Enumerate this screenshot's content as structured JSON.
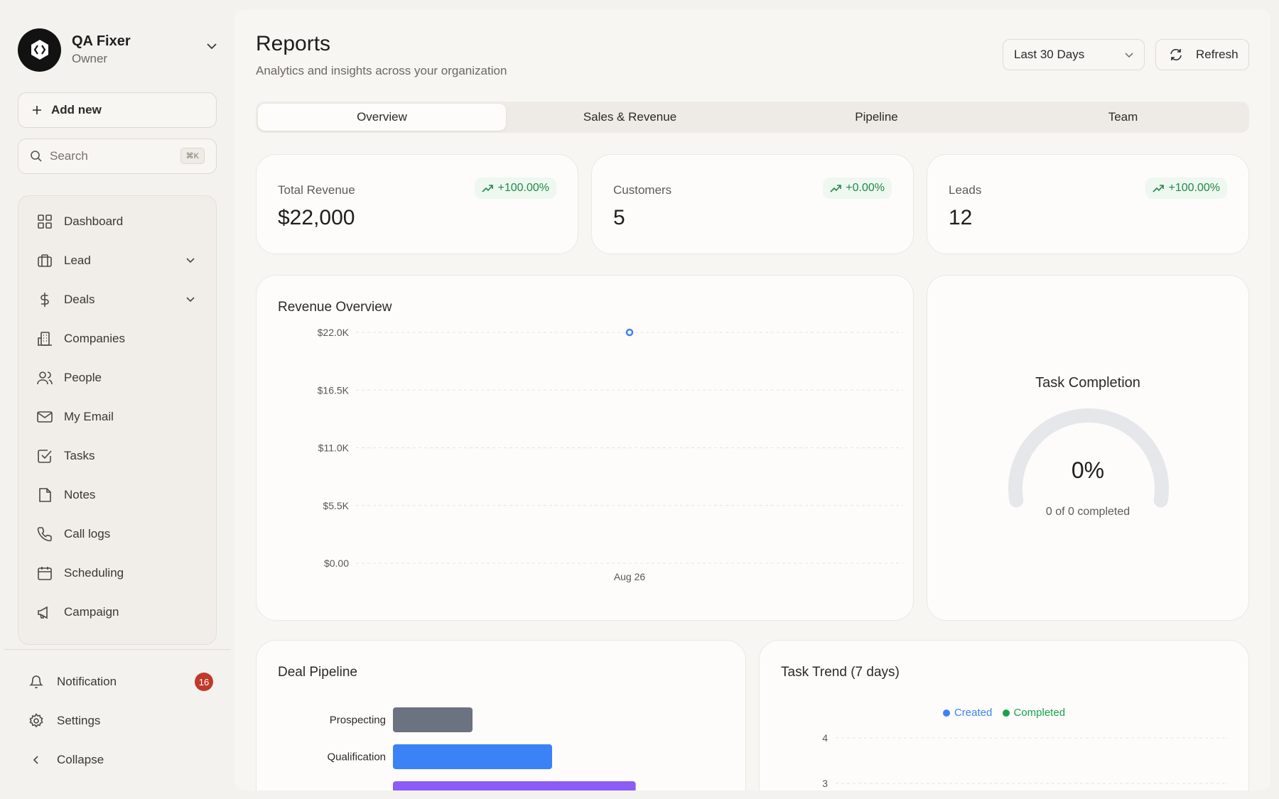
{
  "account": {
    "name": "QA Fixer",
    "role": "Owner"
  },
  "sidebar": {
    "add_new": "Add new",
    "search_placeholder": "Search",
    "search_shortcut": "⌘K",
    "items": [
      {
        "label": "Dashboard",
        "icon": "dashboard-icon"
      },
      {
        "label": "Lead",
        "icon": "briefcase-icon",
        "expandable": true
      },
      {
        "label": "Deals",
        "icon": "dollar-icon",
        "expandable": true
      },
      {
        "label": "Companies",
        "icon": "building-icon"
      },
      {
        "label": "People",
        "icon": "people-icon"
      },
      {
        "label": "My Email",
        "icon": "mail-icon"
      },
      {
        "label": "Tasks",
        "icon": "checkbox-icon"
      },
      {
        "label": "Notes",
        "icon": "note-icon"
      },
      {
        "label": "Call logs",
        "icon": "phone-icon"
      },
      {
        "label": "Scheduling",
        "icon": "calendar-icon"
      },
      {
        "label": "Campaign",
        "icon": "megaphone-icon"
      }
    ],
    "bottom": {
      "notification": "Notification",
      "notification_count": "16",
      "settings": "Settings",
      "collapse": "Collapse"
    }
  },
  "header": {
    "title": "Reports",
    "subtitle": "Analytics and insights across your organization",
    "date_range": "Last 30 Days",
    "refresh": "Refresh"
  },
  "tabs": [
    "Overview",
    "Sales & Revenue",
    "Pipeline",
    "Team"
  ],
  "active_tab": "Overview",
  "kpis": [
    {
      "label": "Total Revenue",
      "value": "$22,000",
      "delta": "+100.00%"
    },
    {
      "label": "Customers",
      "value": "5",
      "delta": "+0.00%"
    },
    {
      "label": "Leads",
      "value": "12",
      "delta": "+100.00%"
    }
  ],
  "colors": {
    "accent": "#3b82f6",
    "positive": "#1e8a4a",
    "gray_bar": "#6b7280",
    "purple_bar": "#8b5cf6",
    "completed": "#16a34a",
    "badge": "#c0392b"
  },
  "revenue_overview": {
    "title": "Revenue Overview",
    "chart_data": {
      "type": "line",
      "x": [
        "Aug 26"
      ],
      "series": [
        {
          "values": [
            22000
          ]
        }
      ],
      "y_ticks": [
        "$0.00",
        "$5.5K",
        "$11.0K",
        "$16.5K",
        "$22.0K"
      ],
      "ylim": [
        0,
        22000
      ],
      "grid": true
    }
  },
  "task_completion": {
    "title": "Task Completion",
    "percent_label": "0%",
    "percent": 0,
    "summary": "0 of 0 completed"
  },
  "deal_pipeline": {
    "title": "Deal Pipeline",
    "chart_data": {
      "type": "bar",
      "orientation": "horizontal",
      "categories": [
        "Prospecting",
        "Qualification"
      ],
      "values": [
        1,
        2.0
      ],
      "partial_third_bar_value": 3.05
    }
  },
  "task_trend": {
    "title": "Task Trend (7 days)",
    "legend": [
      "Created",
      "Completed"
    ],
    "chart_data": {
      "type": "line",
      "y_ticks": [
        "4",
        "3"
      ]
    }
  }
}
